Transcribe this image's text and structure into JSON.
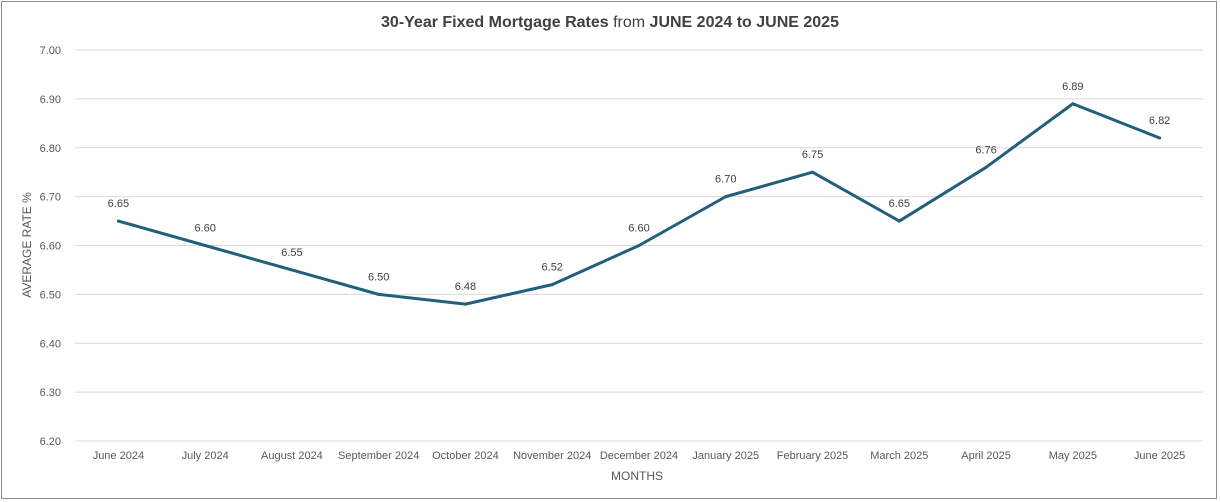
{
  "chart_data": {
    "type": "line",
    "title_parts": {
      "bold_start": "30-Year Fixed Mortgage Rates",
      "middle": " from ",
      "bold_end": "JUNE 2024 to JUNE 2025"
    },
    "xlabel": "MONTHS",
    "ylabel": "AVERAGE RATE %",
    "ylim": [
      6.2,
      7.0
    ],
    "yticks": [
      "6.20",
      "6.30",
      "6.40",
      "6.50",
      "6.60",
      "6.70",
      "6.80",
      "6.90",
      "7.00"
    ],
    "grid": true,
    "line_color": "#215f7a",
    "categories": [
      "June 2024",
      "July 2024",
      "August 2024",
      "September 2024",
      "October 2024",
      "November 2024",
      "December 2024",
      "January 2025",
      "February 2025",
      "March 2025",
      "April 2025",
      "May 2025",
      "June 2025"
    ],
    "values": [
      6.65,
      6.6,
      6.55,
      6.5,
      6.48,
      6.52,
      6.6,
      6.7,
      6.75,
      6.65,
      6.76,
      6.89,
      6.82
    ],
    "data_labels": [
      "6.65",
      "6.60",
      "6.55",
      "6.50",
      "6.48",
      "6.52",
      "6.60",
      "6.70",
      "6.75",
      "6.65",
      "6.76",
      "6.89",
      "6.82"
    ]
  }
}
